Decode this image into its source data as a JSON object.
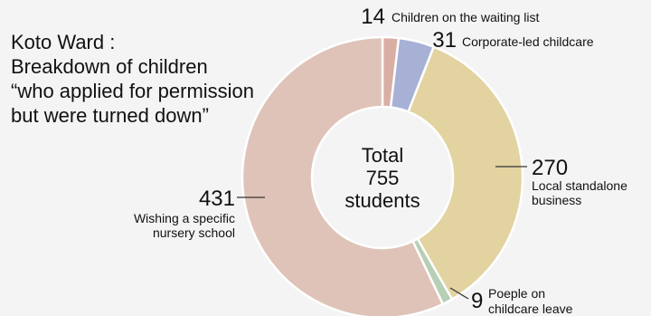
{
  "title": {
    "lines": [
      "Koto Ward :",
      "Breakdown of children",
      "“who applied for permission",
      "but were turned down”"
    ]
  },
  "center": {
    "line1": "Total",
    "line2": "755",
    "line3": "students"
  },
  "chart_data": {
    "type": "pie",
    "variant": "donut",
    "total": 755,
    "slices": [
      {
        "value": 14,
        "value_label": "14",
        "label_lines": [
          "Children on the waiting list"
        ],
        "color": "#d9aea5"
      },
      {
        "value": 31,
        "value_label": "31",
        "label_lines": [
          "Corporate-led childcare"
        ],
        "color": "#a7b1d6"
      },
      {
        "value": 270,
        "value_label": "270",
        "label_lines": [
          "Local standalone",
          "business"
        ],
        "color": "#e2d3a0"
      },
      {
        "value": 9,
        "value_label": "9",
        "label_lines": [
          "Poeple on",
          "childcare leave"
        ],
        "color": "#b7cfb6"
      },
      {
        "value": 431,
        "value_label": "431",
        "label_lines": [
          "Wishing a specific",
          "nursery school"
        ],
        "color": "#dfc3b8"
      }
    ]
  }
}
